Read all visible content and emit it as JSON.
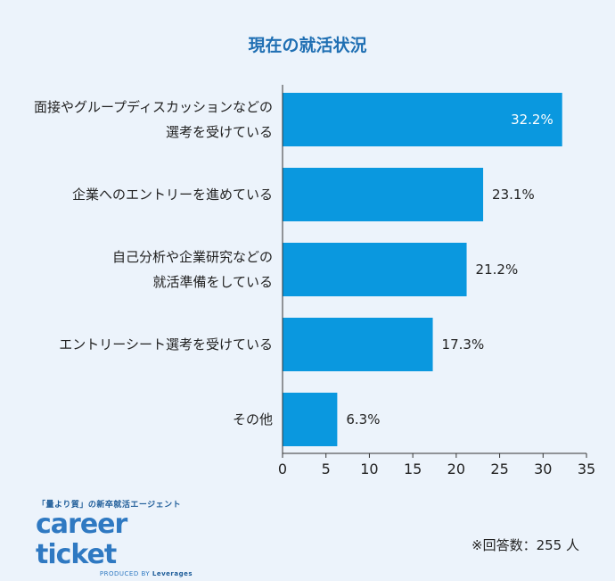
{
  "chart_data": {
    "type": "bar",
    "orientation": "horizontal",
    "title": "現在の就活状況",
    "categories": [
      [
        "面接やグループディスカッションなどの",
        "選考を受けている"
      ],
      [
        "企業へのエントリーを進めている"
      ],
      [
        "自己分析や企業研究などの",
        "就活準備をしている"
      ],
      [
        "エントリーシート選考を受けている"
      ],
      [
        "その他"
      ]
    ],
    "values": [
      32.2,
      23.1,
      21.2,
      17.3,
      6.3
    ],
    "value_labels": [
      "32.2%",
      "23.1%",
      "21.2%",
      "17.3%",
      "6.3%"
    ],
    "xlim": [
      0,
      35
    ],
    "xticks": [
      0,
      5,
      10,
      15,
      20,
      25,
      30,
      35
    ],
    "grid": false,
    "bar_color": "#0a98df",
    "xlabel": "",
    "ylabel": ""
  },
  "logo": {
    "tagline": "「量より質」の新卒就活エージェント",
    "name": "career ticket",
    "produced_by": "PRODUCED BY",
    "company": "Leverages"
  },
  "note": "※回答数：255 人",
  "colors": {
    "background": "#ecf3fb",
    "title": "#1f6fb3",
    "bar": "#0a98df",
    "logo": "#2f79c2"
  }
}
